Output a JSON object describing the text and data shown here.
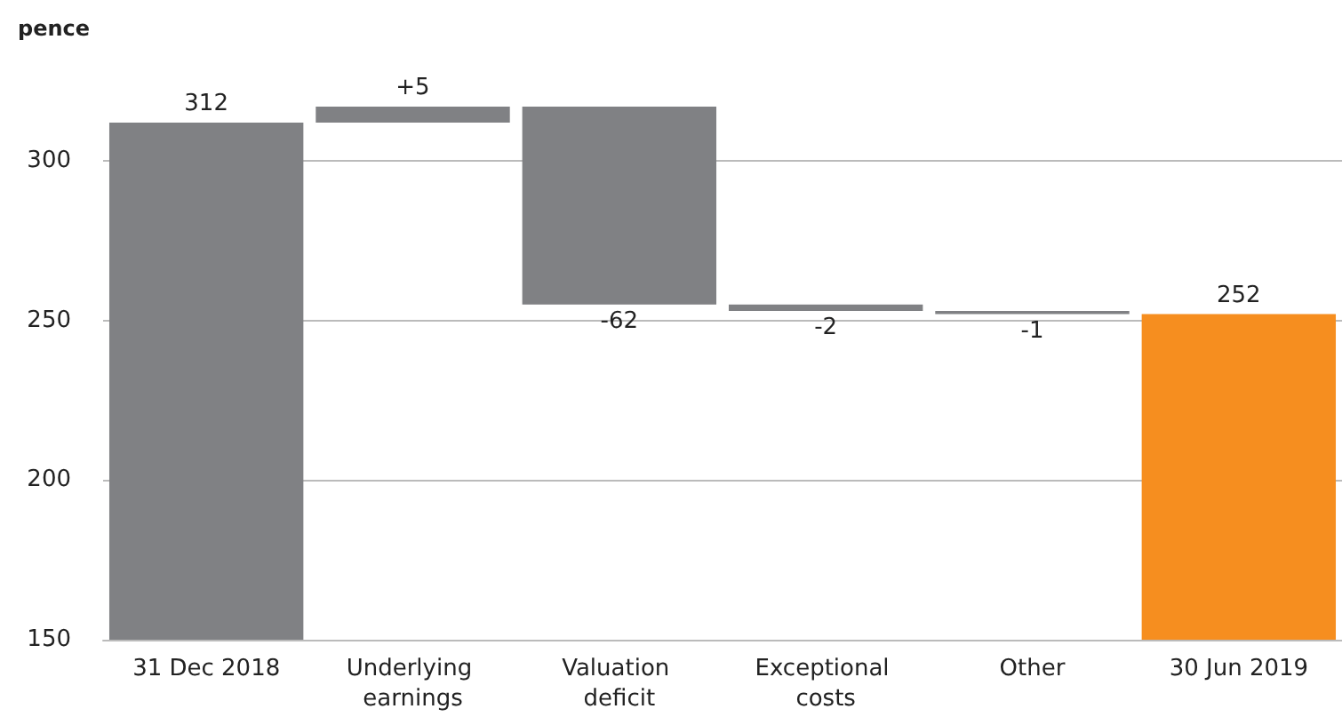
{
  "chart_data": {
    "type": "bar",
    "ylabel": "pence",
    "categories": [
      "31 Dec 2018",
      "Underlying earnings",
      "Valuation deficit",
      "Exceptional costs",
      "Other",
      "30 Jun 2019"
    ],
    "values": [
      312,
      5,
      -62,
      -2,
      -1,
      252
    ],
    "base": [
      null,
      312,
      317,
      255,
      253,
      null
    ],
    "value_labels": [
      "312",
      "+5",
      "-62",
      "-2",
      "-1",
      "252"
    ],
    "colors": [
      "#808184",
      "#808184",
      "#808184",
      "#808184",
      "#808184",
      "#f68e1f"
    ],
    "ylim": [
      150,
      317
    ],
    "yticks": [
      150,
      200,
      250,
      300
    ],
    "grid": "y"
  }
}
